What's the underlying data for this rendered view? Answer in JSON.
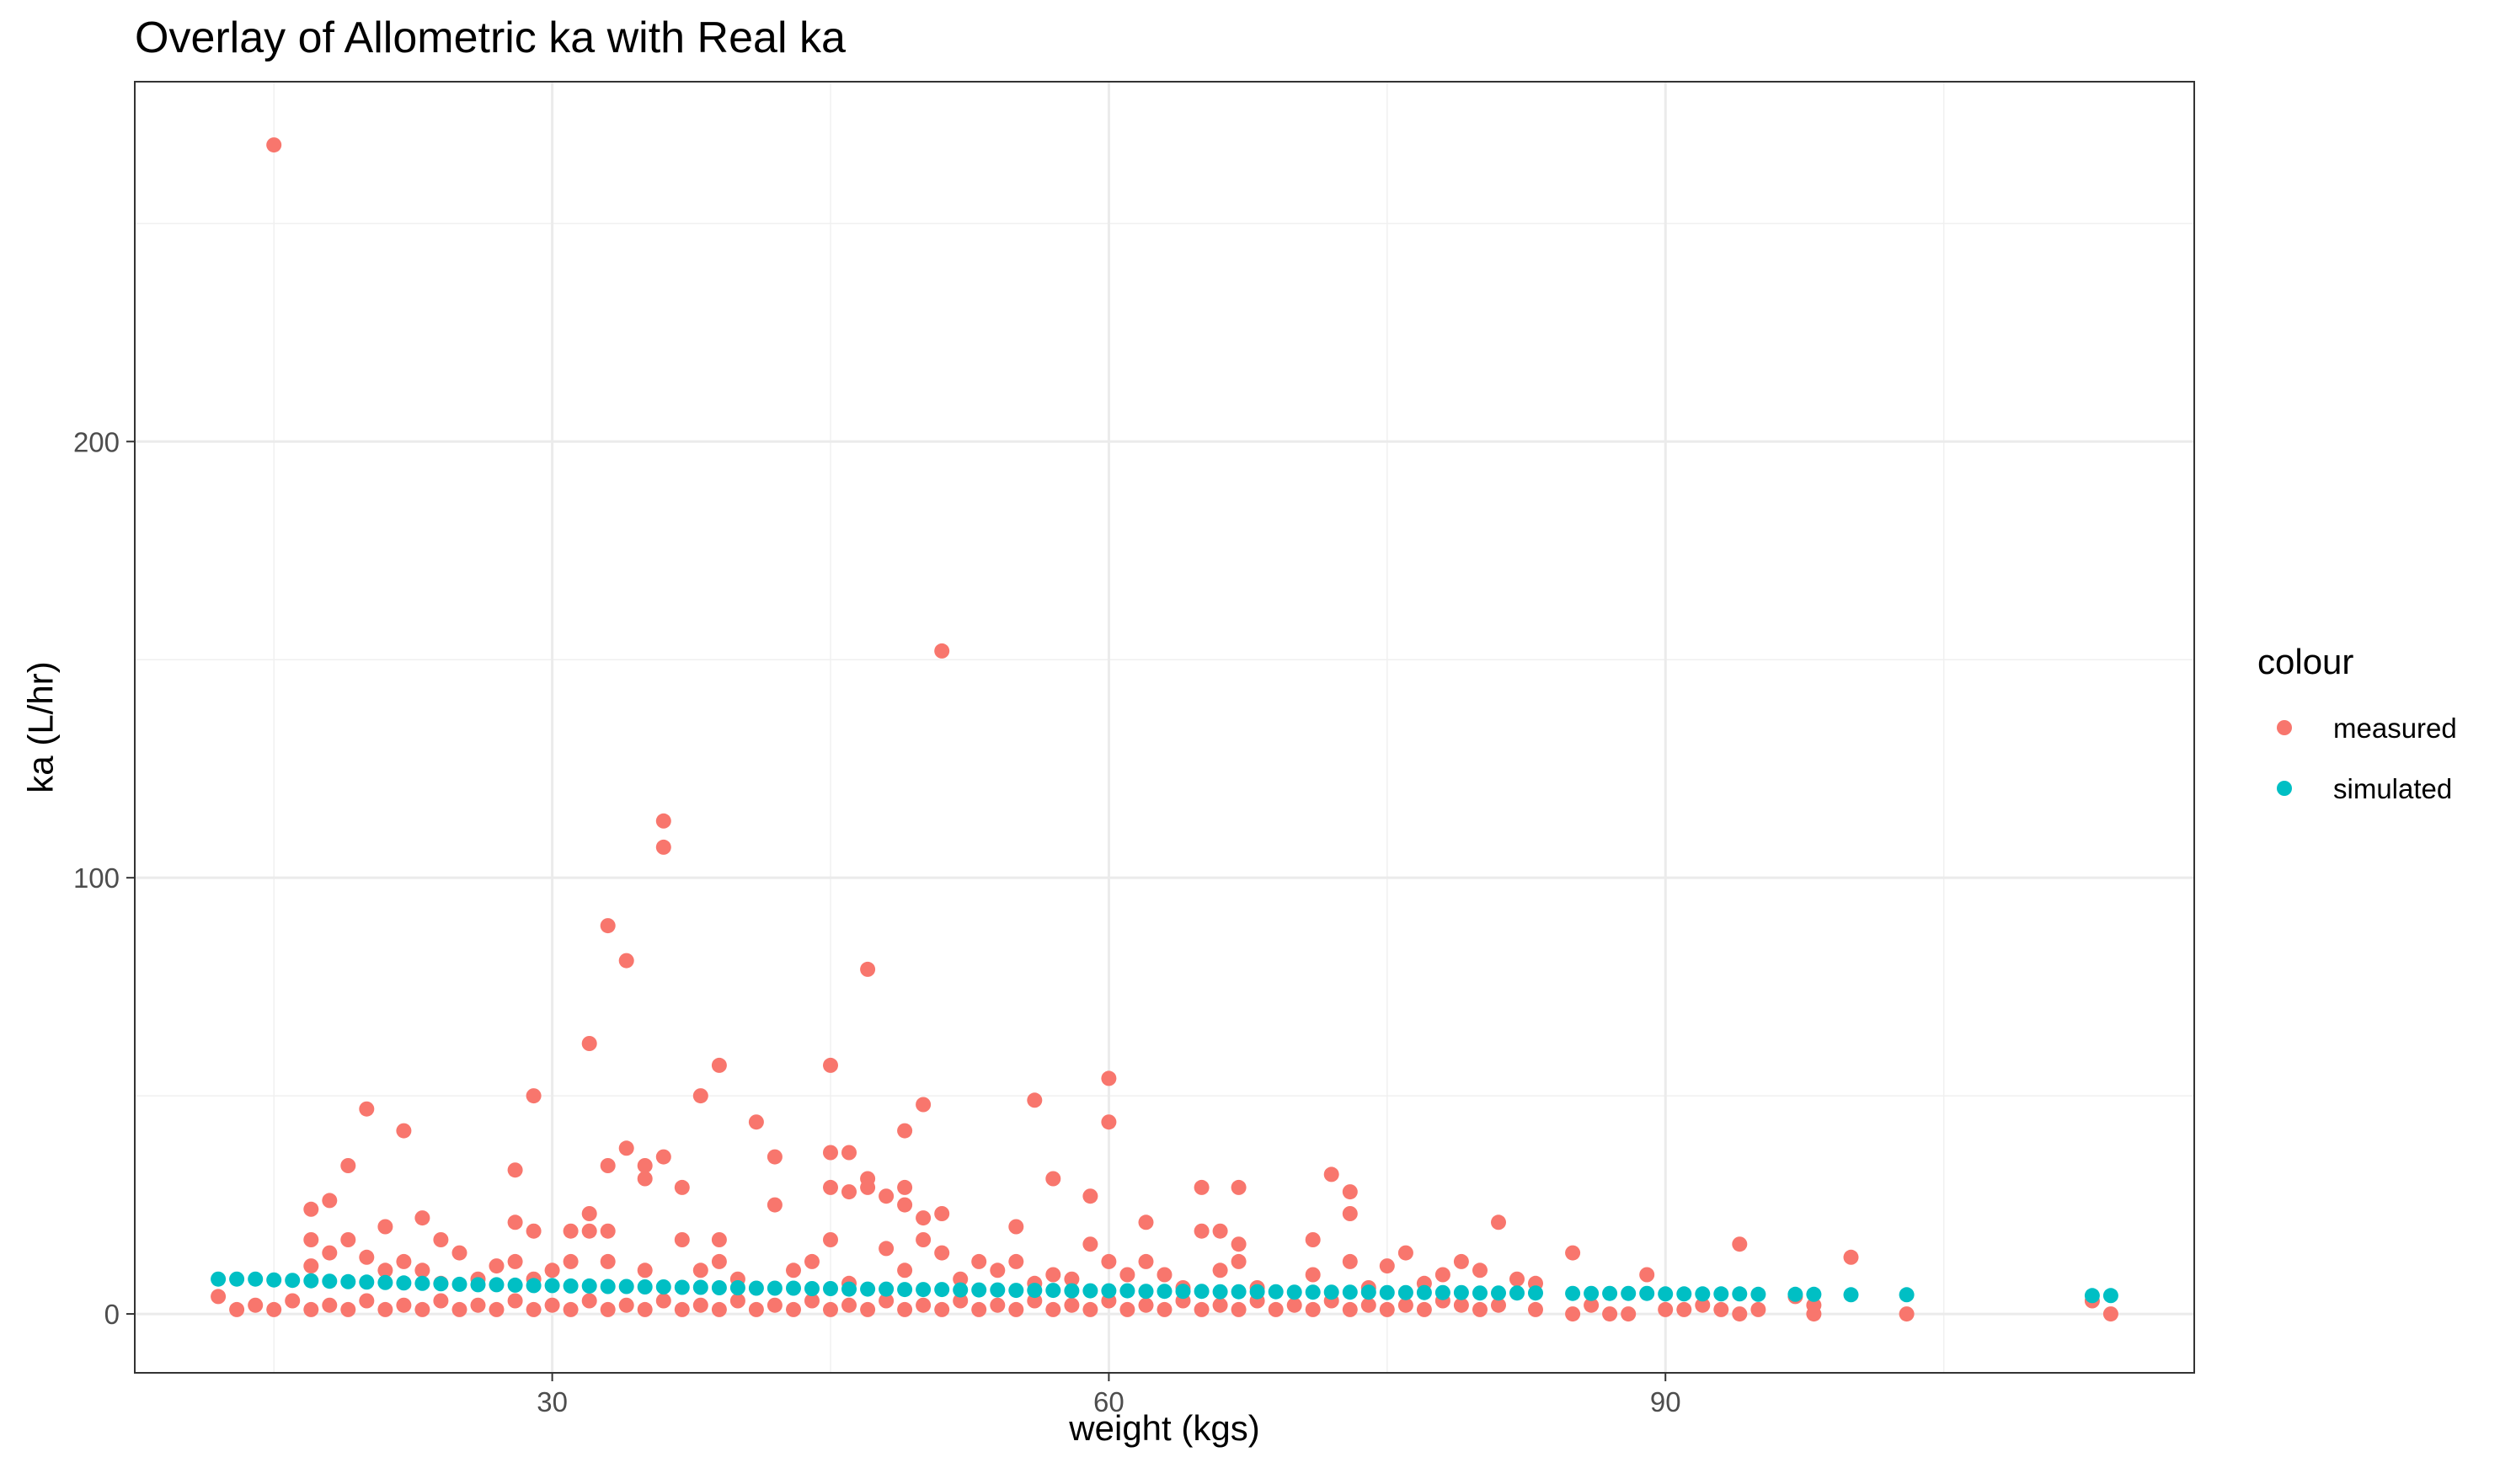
{
  "chart_data": {
    "type": "scatter",
    "title": "Overlay of Allometric ka with Real ka",
    "xlabel": "weight (kgs)",
    "ylabel": "ka (L/hr)",
    "xlim": [
      7.5,
      118.5
    ],
    "ylim": [
      -13.5,
      282.5
    ],
    "x_ticks": [
      30,
      60,
      90
    ],
    "y_ticks": [
      0,
      100,
      200
    ],
    "x_tick_labels": [
      "30",
      "60",
      "90"
    ],
    "y_tick_labels": [
      "0",
      "100",
      "200"
    ],
    "grid": true,
    "legend": {
      "title": "colour",
      "position": "right"
    },
    "colors": {
      "measured": "#F8766D",
      "simulated": "#00BFC4"
    },
    "series": [
      {
        "name": "measured",
        "points": [
          [
            15,
            268
          ],
          [
            51,
            152
          ],
          [
            36,
            113
          ],
          [
            36,
            107
          ],
          [
            33,
            89
          ],
          [
            34,
            81
          ],
          [
            47,
            79
          ],
          [
            32,
            62
          ],
          [
            39,
            57
          ],
          [
            45,
            57
          ],
          [
            60,
            54
          ],
          [
            29,
            50
          ],
          [
            38,
            50
          ],
          [
            56,
            49
          ],
          [
            50,
            48
          ],
          [
            20,
            47
          ],
          [
            41,
            44
          ],
          [
            60,
            44
          ],
          [
            22,
            42
          ],
          [
            49,
            42
          ],
          [
            34,
            38
          ],
          [
            45,
            37
          ],
          [
            46,
            37
          ],
          [
            36,
            36
          ],
          [
            42,
            36
          ],
          [
            33,
            34
          ],
          [
            35,
            34
          ],
          [
            19,
            34
          ],
          [
            28,
            33
          ],
          [
            72,
            32
          ],
          [
            35,
            31
          ],
          [
            47,
            31
          ],
          [
            57,
            31
          ],
          [
            37,
            29
          ],
          [
            45,
            29
          ],
          [
            49,
            29
          ],
          [
            65,
            29
          ],
          [
            67,
            29
          ],
          [
            46,
            28
          ],
          [
            47,
            29
          ],
          [
            48,
            27
          ],
          [
            59,
            27
          ],
          [
            73,
            28
          ],
          [
            18,
            26
          ],
          [
            42,
            25
          ],
          [
            49,
            25
          ],
          [
            17,
            24
          ],
          [
            32,
            23
          ],
          [
            51,
            23
          ],
          [
            23,
            22
          ],
          [
            50,
            22
          ],
          [
            62,
            21
          ],
          [
            81,
            21
          ],
          [
            73,
            23
          ],
          [
            28,
            21
          ],
          [
            21,
            20
          ],
          [
            29,
            19
          ],
          [
            31,
            19
          ],
          [
            32,
            19
          ],
          [
            33,
            19
          ],
          [
            55,
            20
          ],
          [
            65,
            19
          ],
          [
            66,
            19
          ],
          [
            17,
            17
          ],
          [
            19,
            17
          ],
          [
            24,
            17
          ],
          [
            37,
            17
          ],
          [
            39,
            17
          ],
          [
            45,
            17
          ],
          [
            50,
            17
          ],
          [
            59,
            16
          ],
          [
            67,
            16
          ],
          [
            71,
            17
          ],
          [
            94,
            16
          ],
          [
            18,
            14
          ],
          [
            25,
            14
          ],
          [
            48,
            15
          ],
          [
            51,
            14
          ],
          [
            76,
            14
          ],
          [
            85,
            14
          ],
          [
            100,
            13
          ],
          [
            20,
            13
          ],
          [
            22,
            12
          ],
          [
            28,
            12
          ],
          [
            31,
            12
          ],
          [
            33,
            12
          ],
          [
            39,
            12
          ],
          [
            44,
            12
          ],
          [
            53,
            12
          ],
          [
            55,
            12
          ],
          [
            60,
            12
          ],
          [
            62,
            12
          ],
          [
            67,
            12
          ],
          [
            73,
            12
          ],
          [
            75,
            11
          ],
          [
            79,
            12
          ],
          [
            17,
            11
          ],
          [
            21,
            10
          ],
          [
            23,
            10
          ],
          [
            27,
            11
          ],
          [
            30,
            10
          ],
          [
            35,
            10
          ],
          [
            38,
            10
          ],
          [
            43,
            10
          ],
          [
            49,
            10
          ],
          [
            54,
            10
          ],
          [
            57,
            9
          ],
          [
            61,
            9
          ],
          [
            63,
            9
          ],
          [
            66,
            10
          ],
          [
            71,
            9
          ],
          [
            78,
            9
          ],
          [
            80,
            10
          ],
          [
            89,
            9
          ],
          [
            82,
            8
          ],
          [
            83,
            7
          ],
          [
            24,
            7
          ],
          [
            26,
            8
          ],
          [
            29,
            8
          ],
          [
            40,
            8
          ],
          [
            46,
            7
          ],
          [
            52,
            8
          ],
          [
            56,
            7
          ],
          [
            58,
            8
          ],
          [
            64,
            6
          ],
          [
            68,
            6
          ],
          [
            74,
            6
          ],
          [
            77,
            7
          ],
          [
            97,
            4
          ],
          [
            113,
            3
          ],
          [
            12,
            4
          ],
          [
            13,
            1
          ],
          [
            14,
            2
          ],
          [
            15,
            1
          ],
          [
            16,
            3
          ],
          [
            17,
            1
          ],
          [
            18,
            2
          ],
          [
            19,
            1
          ],
          [
            20,
            3
          ],
          [
            21,
            1
          ],
          [
            22,
            2
          ],
          [
            23,
            1
          ],
          [
            24,
            3
          ],
          [
            25,
            1
          ],
          [
            26,
            2
          ],
          [
            27,
            1
          ],
          [
            28,
            3
          ],
          [
            29,
            1
          ],
          [
            30,
            2
          ],
          [
            31,
            1
          ],
          [
            32,
            3
          ],
          [
            33,
            1
          ],
          [
            34,
            2
          ],
          [
            35,
            1
          ],
          [
            36,
            3
          ],
          [
            37,
            1
          ],
          [
            38,
            2
          ],
          [
            39,
            1
          ],
          [
            40,
            3
          ],
          [
            41,
            1
          ],
          [
            42,
            2
          ],
          [
            43,
            1
          ],
          [
            44,
            3
          ],
          [
            45,
            1
          ],
          [
            46,
            2
          ],
          [
            47,
            1
          ],
          [
            48,
            3
          ],
          [
            49,
            1
          ],
          [
            50,
            2
          ],
          [
            51,
            1
          ],
          [
            52,
            3
          ],
          [
            53,
            1
          ],
          [
            54,
            2
          ],
          [
            55,
            1
          ],
          [
            56,
            3
          ],
          [
            57,
            1
          ],
          [
            58,
            2
          ],
          [
            59,
            1
          ],
          [
            60,
            3
          ],
          [
            61,
            1
          ],
          [
            62,
            2
          ],
          [
            63,
            1
          ],
          [
            64,
            3
          ],
          [
            65,
            1
          ],
          [
            66,
            2
          ],
          [
            67,
            1
          ],
          [
            68,
            3
          ],
          [
            69,
            1
          ],
          [
            70,
            2
          ],
          [
            71,
            1
          ],
          [
            72,
            3
          ],
          [
            73,
            1
          ],
          [
            74,
            2
          ],
          [
            75,
            1
          ],
          [
            76,
            2
          ],
          [
            77,
            1
          ],
          [
            78,
            3
          ],
          [
            79,
            2
          ],
          [
            80,
            1
          ],
          [
            81,
            2
          ],
          [
            83,
            1
          ],
          [
            85,
            0
          ],
          [
            86,
            2
          ],
          [
            87,
            0
          ],
          [
            88,
            0
          ],
          [
            90,
            1
          ],
          [
            91,
            1
          ],
          [
            92,
            2
          ],
          [
            93,
            1
          ],
          [
            94,
            0
          ],
          [
            95,
            1
          ],
          [
            98,
            0
          ],
          [
            98,
            2
          ],
          [
            103,
            0
          ],
          [
            114,
            0
          ]
        ]
      },
      {
        "name": "simulated",
        "points": [
          [
            12,
            8
          ],
          [
            13,
            8
          ],
          [
            14,
            8
          ],
          [
            15,
            7.8
          ],
          [
            16,
            7.7
          ],
          [
            17,
            7.6
          ],
          [
            18,
            7.5
          ],
          [
            19,
            7.4
          ],
          [
            20,
            7.3
          ],
          [
            21,
            7.2
          ],
          [
            22,
            7.1
          ],
          [
            23,
            7
          ],
          [
            24,
            6.9
          ],
          [
            25,
            6.8
          ],
          [
            26,
            6.7
          ],
          [
            27,
            6.7
          ],
          [
            28,
            6.6
          ],
          [
            29,
            6.5
          ],
          [
            30,
            6.5
          ],
          [
            31,
            6.4
          ],
          [
            32,
            6.4
          ],
          [
            33,
            6.3
          ],
          [
            34,
            6.3
          ],
          [
            35,
            6.2
          ],
          [
            36,
            6.2
          ],
          [
            37,
            6.1
          ],
          [
            38,
            6.1
          ],
          [
            39,
            6
          ],
          [
            40,
            6
          ],
          [
            41,
            5.9
          ],
          [
            42,
            5.9
          ],
          [
            43,
            5.9
          ],
          [
            44,
            5.8
          ],
          [
            45,
            5.8
          ],
          [
            46,
            5.7
          ],
          [
            47,
            5.7
          ],
          [
            48,
            5.7
          ],
          [
            49,
            5.6
          ],
          [
            50,
            5.6
          ],
          [
            51,
            5.6
          ],
          [
            52,
            5.5
          ],
          [
            53,
            5.5
          ],
          [
            54,
            5.5
          ],
          [
            55,
            5.4
          ],
          [
            56,
            5.4
          ],
          [
            57,
            5.4
          ],
          [
            58,
            5.3
          ],
          [
            59,
            5.3
          ],
          [
            60,
            5.3
          ],
          [
            61,
            5.3
          ],
          [
            62,
            5.2
          ],
          [
            63,
            5.2
          ],
          [
            64,
            5.2
          ],
          [
            65,
            5.2
          ],
          [
            66,
            5.1
          ],
          [
            67,
            5.1
          ],
          [
            68,
            5.1
          ],
          [
            69,
            5.1
          ],
          [
            70,
            5
          ],
          [
            71,
            5
          ],
          [
            72,
            5
          ],
          [
            73,
            5
          ],
          [
            74,
            5
          ],
          [
            75,
            4.9
          ],
          [
            76,
            4.9
          ],
          [
            77,
            4.9
          ],
          [
            78,
            4.9
          ],
          [
            79,
            4.9
          ],
          [
            80,
            4.8
          ],
          [
            81,
            4.8
          ],
          [
            82,
            4.8
          ],
          [
            83,
            4.8
          ],
          [
            85,
            4.7
          ],
          [
            86,
            4.7
          ],
          [
            87,
            4.7
          ],
          [
            88,
            4.7
          ],
          [
            89,
            4.7
          ],
          [
            90,
            4.6
          ],
          [
            91,
            4.6
          ],
          [
            92,
            4.6
          ],
          [
            93,
            4.6
          ],
          [
            94,
            4.6
          ],
          [
            95,
            4.5
          ],
          [
            97,
            4.5
          ],
          [
            98,
            4.5
          ],
          [
            100,
            4.4
          ],
          [
            103,
            4.4
          ],
          [
            113,
            4.2
          ],
          [
            114,
            4.2
          ]
        ]
      }
    ]
  }
}
